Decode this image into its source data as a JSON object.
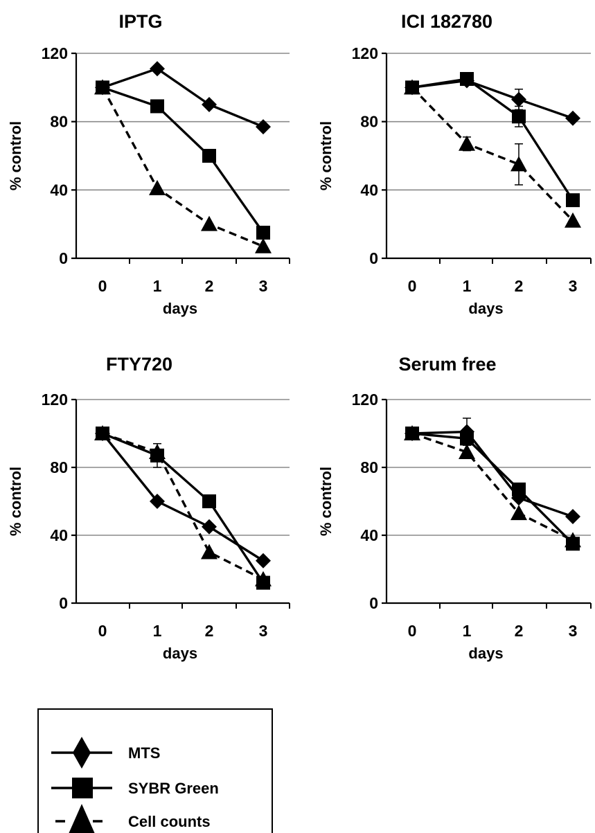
{
  "chart_data": {
    "legend": {
      "placement": "bottom-left",
      "entries": [
        {
          "label": "MTS",
          "marker": "diamond",
          "line": "solid"
        },
        {
          "label": "SYBR Green",
          "marker": "square",
          "line": "solid"
        },
        {
          "label": "Cell counts",
          "marker": "triangle",
          "line": "dashed"
        }
      ]
    },
    "panels": [
      {
        "type": "line",
        "title": "IPTG",
        "xlabel": "days",
        "ylabel": "% control",
        "x": [
          0,
          1,
          2,
          3
        ],
        "ylim": [
          0,
          120
        ],
        "yticks": [
          0,
          40,
          80,
          120
        ],
        "grid": true,
        "series": [
          {
            "name": "MTS",
            "marker": "diamond",
            "dashed": false,
            "values": [
              100,
              111,
              90,
              77
            ],
            "errors": [
              0,
              0,
              0,
              0
            ]
          },
          {
            "name": "SYBR Green",
            "marker": "square",
            "dashed": false,
            "values": [
              100,
              89,
              60,
              15
            ],
            "errors": [
              0,
              0,
              0,
              0
            ]
          },
          {
            "name": "Cell counts",
            "marker": "triangle",
            "dashed": true,
            "values": [
              100,
              41,
              20,
              7
            ],
            "errors": [
              0,
              0,
              0,
              0
            ]
          }
        ]
      },
      {
        "type": "line",
        "title": "ICI 182780",
        "xlabel": "days",
        "ylabel": "% control",
        "x": [
          0,
          1,
          2,
          3
        ],
        "ylim": [
          0,
          120
        ],
        "yticks": [
          0,
          40,
          80,
          120
        ],
        "grid": true,
        "series": [
          {
            "name": "MTS",
            "marker": "diamond",
            "dashed": false,
            "values": [
              100,
              104,
              93,
              82
            ],
            "errors": [
              2,
              2,
              6,
              0
            ]
          },
          {
            "name": "SYBR Green",
            "marker": "square",
            "dashed": false,
            "values": [
              100,
              105,
              83,
              34
            ],
            "errors": [
              0,
              2,
              6,
              0
            ]
          },
          {
            "name": "Cell counts",
            "marker": "triangle",
            "dashed": true,
            "values": [
              100,
              67,
              55,
              22
            ],
            "errors": [
              0,
              4,
              12,
              0
            ]
          }
        ]
      },
      {
        "type": "line",
        "title": "FTY720",
        "xlabel": "days",
        "ylabel": "% control",
        "x": [
          0,
          1,
          2,
          3
        ],
        "ylim": [
          0,
          120
        ],
        "yticks": [
          0,
          40,
          80,
          120
        ],
        "grid": true,
        "series": [
          {
            "name": "MTS",
            "marker": "diamond",
            "dashed": false,
            "values": [
              100,
              60,
              45,
              25
            ],
            "errors": [
              0,
              0,
              0,
              0
            ]
          },
          {
            "name": "SYBR Green",
            "marker": "square",
            "dashed": false,
            "values": [
              100,
              87,
              60,
              12
            ],
            "errors": [
              0,
              7,
              0,
              0
            ]
          },
          {
            "name": "Cell counts",
            "marker": "triangle",
            "dashed": true,
            "values": [
              100,
              89,
              30,
              14
            ],
            "errors": [
              0,
              0,
              0,
              0
            ]
          }
        ]
      },
      {
        "type": "line",
        "title": "Serum free",
        "xlabel": "days",
        "ylabel": "% control",
        "x": [
          0,
          1,
          2,
          3
        ],
        "ylim": [
          0,
          120
        ],
        "yticks": [
          0,
          40,
          80,
          120
        ],
        "grid": true,
        "series": [
          {
            "name": "MTS",
            "marker": "diamond",
            "dashed": false,
            "values": [
              100,
              101,
              62,
              51
            ],
            "errors": [
              0,
              8,
              0,
              0
            ]
          },
          {
            "name": "SYBR Green",
            "marker": "square",
            "dashed": false,
            "values": [
              100,
              97,
              67,
              35
            ],
            "errors": [
              0,
              3,
              0,
              0
            ]
          },
          {
            "name": "Cell counts",
            "marker": "triangle",
            "dashed": true,
            "values": [
              100,
              89,
              53,
              37
            ],
            "errors": [
              0,
              0,
              0,
              0
            ]
          }
        ]
      }
    ]
  }
}
